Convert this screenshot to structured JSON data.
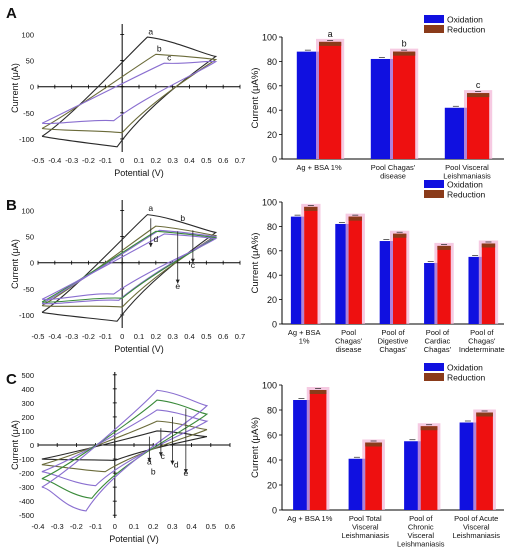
{
  "panel_labels": [
    "A",
    "B",
    "C"
  ],
  "colors": {
    "oxidation": "#1010e0",
    "reduction": "#ee1010",
    "reduction_top": "#8a3b1a",
    "highlight": "#f2b3d6",
    "curve_dark": "#2a2a2a",
    "curve_olive": "#6b6b3a",
    "curve_purple": "#8a6fd0",
    "curve_green": "#3a8a3a"
  },
  "chart_data": [
    {
      "panel": "A",
      "type": "line",
      "xlabel": "Potential (V)",
      "ylabel": "Current (μA)",
      "xlim": [
        -0.5,
        0.7
      ],
      "ylim": [
        -125,
        120
      ],
      "xticks": [
        "-0.5",
        "-0.4",
        "-0.3",
        "-0.2",
        "-0.1",
        "0",
        "0.1",
        "0.2",
        "0.3",
        "0.4",
        "0.5",
        "0.6",
        "0.7"
      ],
      "yticks": [
        "100",
        "50",
        "0",
        "-50",
        "-100"
      ],
      "series": [
        {
          "name": "a",
          "ox_peak": [
            0.15,
            95
          ],
          "red_peak": [
            -0.03,
            -115
          ],
          "start": -95,
          "end": 58
        },
        {
          "name": "b",
          "ox_peak": [
            0.2,
            62
          ],
          "red_peak": [
            0.0,
            -88
          ],
          "start": -80,
          "end": 52
        },
        {
          "name": "c",
          "ox_peak": [
            0.25,
            45
          ],
          "red_peak": [
            -0.05,
            -65
          ],
          "start": -70,
          "end": 48
        }
      ],
      "annotations": [
        "a",
        "b",
        "c"
      ]
    },
    {
      "panel": "A",
      "type": "bar",
      "ylabel": "Current (μA%)",
      "ylim": [
        0,
        100
      ],
      "yticks": [
        "0",
        "20",
        "40",
        "60",
        "80",
        "100"
      ],
      "legend": [
        "Oxidation",
        "Reduction"
      ],
      "legend_position": "top-right",
      "categories": [
        "Ag + BSA 1%",
        "Pool Chagas' disease",
        "Pool Visceral Leishmaniasis"
      ],
      "series": [
        {
          "name": "Oxidation",
          "values": [
            88,
            82,
            42
          ]
        },
        {
          "name": "Reduction",
          "values": [
            96,
            88,
            54
          ]
        }
      ],
      "bar_labels": [
        "a",
        "b",
        "c"
      ]
    },
    {
      "panel": "B",
      "type": "line",
      "xlabel": "Potential (V)",
      "ylabel": "Current (μA)",
      "xlim": [
        -0.5,
        0.7
      ],
      "ylim": [
        -125,
        120
      ],
      "xticks": [
        "-0.5",
        "-0.4",
        "-0.3",
        "-0.2",
        "-0.1",
        "0",
        "0.1",
        "0.2",
        "0.3",
        "0.4",
        "0.5",
        "0.6",
        "0.7"
      ],
      "yticks": [
        "100",
        "50",
        "0",
        "-50",
        "-100"
      ],
      "series": [
        {
          "name": "a",
          "ox_peak": [
            0.15,
            92
          ],
          "red_peak": [
            -0.03,
            -112
          ],
          "start": -95,
          "end": 58
        },
        {
          "name": "b",
          "ox_peak": [
            0.2,
            70
          ],
          "red_peak": [
            0.0,
            -85
          ],
          "start": -82,
          "end": 52
        },
        {
          "name": "c",
          "ox_peak": [
            0.22,
            62
          ],
          "red_peak": [
            -0.02,
            -72
          ],
          "start": -78,
          "end": 50
        },
        {
          "name": "d",
          "ox_peak": [
            0.2,
            60
          ],
          "red_peak": [
            0.0,
            -68
          ],
          "start": -75,
          "end": 48
        },
        {
          "name": "e",
          "ox_peak": [
            0.25,
            55
          ],
          "red_peak": [
            -0.05,
            -60
          ],
          "start": -70,
          "end": 46
        }
      ],
      "annotations": [
        "a",
        "b",
        "c",
        "d",
        "e"
      ]
    },
    {
      "panel": "B",
      "type": "bar",
      "ylabel": "Current (μA%)",
      "ylim": [
        0,
        100
      ],
      "yticks": [
        "0",
        "20",
        "40",
        "60",
        "80",
        "100"
      ],
      "legend": [
        "Oxidation",
        "Reduction"
      ],
      "legend_position": "top-right",
      "categories": [
        "Ag + BSA 1%",
        "Pool Chagas' disease",
        "Pool of Digestive Chagas'",
        "Pool of Cardiac Chagas'",
        "Pool of Chagas' Indeterminate"
      ],
      "series": [
        {
          "name": "Oxidation",
          "values": [
            88,
            82,
            68,
            50,
            55
          ]
        },
        {
          "name": "Reduction",
          "values": [
            96,
            88,
            74,
            64,
            66
          ]
        }
      ]
    },
    {
      "panel": "C",
      "type": "line",
      "xlabel": "Potential (V)",
      "ylabel": "Current (μA)",
      "xlim": [
        -0.4,
        0.6
      ],
      "ylim": [
        -520,
        520
      ],
      "xticks": [
        "-0.4",
        "-0.3",
        "-0.2",
        "-0.1",
        "0",
        "0.1",
        "0.2",
        "0.3",
        "0.4",
        "0.5",
        "0.6"
      ],
      "yticks": [
        "500",
        "400",
        "300",
        "200",
        "100",
        "0",
        "-100",
        "-200",
        "-300",
        "-400",
        "-500"
      ],
      "series": [
        {
          "name": "a",
          "ox_peak": [
            0.22,
            100
          ],
          "red_peak": [
            0.0,
            -110
          ],
          "start": -100,
          "end": 60
        },
        {
          "name": "b",
          "ox_peak": [
            0.22,
            170
          ],
          "red_peak": [
            -0.05,
            -190
          ],
          "start": -140,
          "end": 110
        },
        {
          "name": "c",
          "ox_peak": [
            0.22,
            250
          ],
          "red_peak": [
            -0.1,
            -290
          ],
          "start": -190,
          "end": 170
        },
        {
          "name": "d",
          "ox_peak": [
            0.22,
            320
          ],
          "red_peak": [
            -0.12,
            -380
          ],
          "start": -240,
          "end": 220
        },
        {
          "name": "e",
          "ox_peak": [
            0.22,
            390
          ],
          "red_peak": [
            -0.15,
            -470
          ],
          "start": -300,
          "end": 280
        }
      ],
      "annotations": [
        "a",
        "b",
        "c",
        "d",
        "e"
      ]
    },
    {
      "panel": "C",
      "type": "bar",
      "ylabel": "Current (μA%)",
      "ylim": [
        0,
        100
      ],
      "yticks": [
        "0",
        "20",
        "40",
        "60",
        "80",
        "100"
      ],
      "legend": [
        "Oxidation",
        "Reduction"
      ],
      "legend_position": "top-right",
      "categories": [
        "Ag + BSA 1%",
        "Pool Total Visceral Leishmaniasis",
        "Pool of Chronic Visceral Leishmaniasis",
        "Pool of Acute Visceral Leishmaniasis"
      ],
      "series": [
        {
          "name": "Oxidation",
          "values": [
            88,
            41,
            55,
            70
          ]
        },
        {
          "name": "Reduction",
          "values": [
            96,
            54,
            67,
            78
          ]
        }
      ]
    }
  ]
}
